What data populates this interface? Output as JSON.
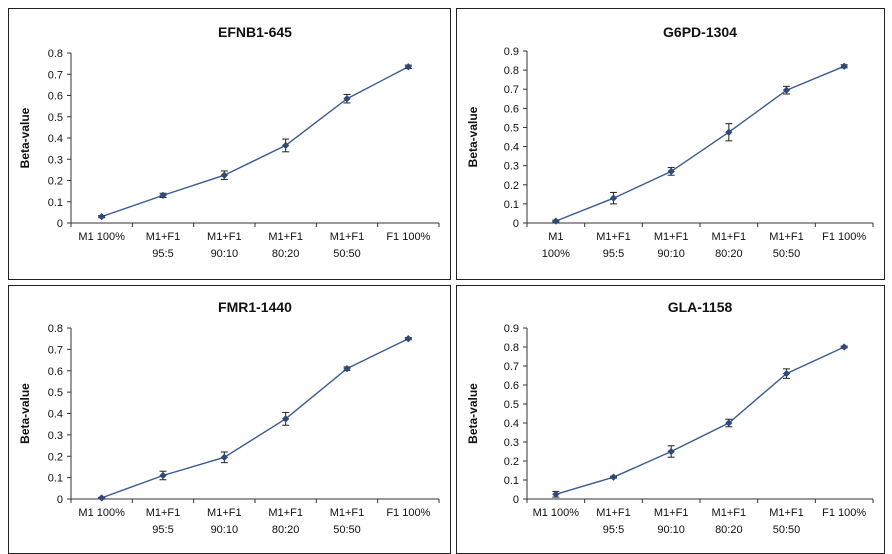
{
  "colors": {
    "line": "#3a5a94",
    "marker": "#2f4a7a",
    "axis": "#333333",
    "error": "#222222"
  },
  "chart_data": [
    {
      "type": "line",
      "title": "EFNB1-645",
      "ylabel": "Beta-value",
      "categories": [
        [
          "M1 100%"
        ],
        [
          "M1+F1",
          "95:5"
        ],
        [
          "M1+F1",
          "90:10"
        ],
        [
          "M1+F1",
          "80:20"
        ],
        [
          "M1+F1",
          "50:50"
        ],
        [
          "F1 100%"
        ]
      ],
      "values": [
        0.03,
        0.13,
        0.225,
        0.365,
        0.585,
        0.735
      ],
      "errors": [
        0.005,
        0.01,
        0.02,
        0.03,
        0.02,
        0.008
      ],
      "ylim": [
        0,
        0.8
      ],
      "yticks": [
        "0",
        "0.1",
        "0.2",
        "0.3",
        "0.4",
        "0.5",
        "0.6",
        "0.7",
        "0.8"
      ],
      "grid": false
    },
    {
      "type": "line",
      "title": "G6PD-1304",
      "ylabel": "Beta-value",
      "categories": [
        [
          "M1",
          "100%"
        ],
        [
          "M1+F1",
          "95:5"
        ],
        [
          "M1+F1",
          "90:10"
        ],
        [
          "M1+F1",
          "80:20"
        ],
        [
          "M1+F1",
          "50:50"
        ],
        [
          "F1 100%"
        ]
      ],
      "values": [
        0.01,
        0.13,
        0.27,
        0.475,
        0.695,
        0.82
      ],
      "errors": [
        0.005,
        0.03,
        0.02,
        0.045,
        0.02,
        0.008
      ],
      "ylim": [
        0,
        0.9
      ],
      "yticks": [
        "0",
        "0.1",
        "0.2",
        "0.3",
        "0.4",
        "0.5",
        "0.6",
        "0.7",
        "0.8",
        "0.9"
      ],
      "grid": false
    },
    {
      "type": "line",
      "title": "FMR1-1440",
      "ylabel": "Beta-value",
      "categories": [
        [
          "M1 100%"
        ],
        [
          "M1+F1",
          "95:5"
        ],
        [
          "M1+F1",
          "90:10"
        ],
        [
          "M1+F1",
          "80:20"
        ],
        [
          "M1+F1",
          "50:50"
        ],
        [
          "F1 100%"
        ]
      ],
      "values": [
        0.005,
        0.11,
        0.195,
        0.375,
        0.61,
        0.75
      ],
      "errors": [
        0.003,
        0.02,
        0.025,
        0.03,
        0.008,
        0.005
      ],
      "ylim": [
        0,
        0.8
      ],
      "yticks": [
        "0",
        "0.1",
        "0.2",
        "0.3",
        "0.4",
        "0.5",
        "0.6",
        "0.7",
        "0.8"
      ],
      "grid": false
    },
    {
      "type": "line",
      "title": "GLA-1158",
      "ylabel": "Beta-value",
      "categories": [
        [
          "M1 100%"
        ],
        [
          "M1+F1",
          "95:5"
        ],
        [
          "M1+F1",
          "90:10"
        ],
        [
          "M1+F1",
          "80:20"
        ],
        [
          "M1+F1",
          "50:50"
        ],
        [
          "F1 100%"
        ]
      ],
      "values": [
        0.025,
        0.115,
        0.25,
        0.4,
        0.66,
        0.8
      ],
      "errors": [
        0.015,
        0.005,
        0.03,
        0.02,
        0.025,
        0.005
      ],
      "ylim": [
        0,
        0.9
      ],
      "yticks": [
        "0",
        "0.1",
        "0.2",
        "0.3",
        "0.4",
        "0.5",
        "0.6",
        "0.7",
        "0.8",
        "0.9"
      ],
      "grid": false
    }
  ]
}
